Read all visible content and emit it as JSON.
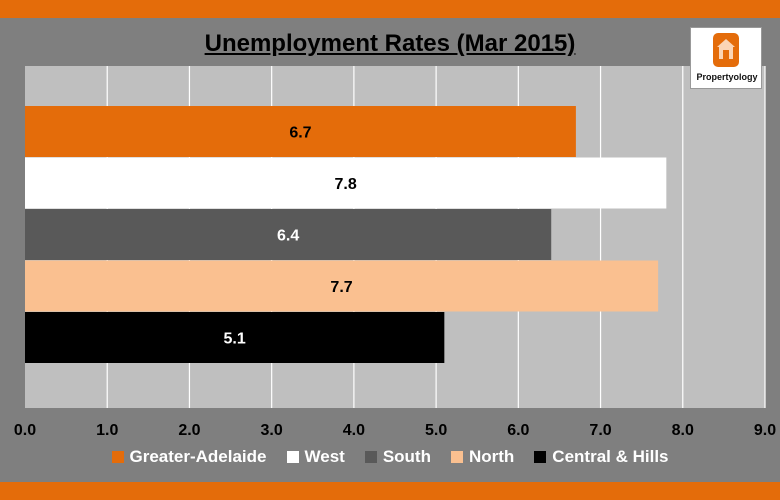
{
  "chart_data": {
    "type": "bar",
    "orientation": "horizontal",
    "title": "Unemployment Rates (Mar 2015)",
    "categories": [
      "Greater-Adelaide",
      "West",
      "South",
      "North",
      "Central & Hills"
    ],
    "values": [
      6.7,
      7.8,
      6.4,
      7.7,
      5.1
    ],
    "value_labels": [
      "6.7",
      "7.8",
      "6.4",
      "7.7",
      "5.1"
    ],
    "colors": [
      "#e46c0a",
      "#ffffff",
      "#595959",
      "#fac090",
      "#000000"
    ],
    "label_colors": [
      "#000000",
      "#000000",
      "#ffffff",
      "#000000",
      "#ffffff"
    ],
    "xlim": [
      0,
      9
    ],
    "x_ticks": [
      "0.0",
      "1.0",
      "2.0",
      "3.0",
      "4.0",
      "5.0",
      "6.0",
      "7.0",
      "8.0",
      "9.0"
    ],
    "grid": true,
    "legend_position": "bottom"
  },
  "logo": {
    "text": "Propertyology",
    "icon": "house-icon"
  },
  "colors": {
    "frame": "#7f7f7f",
    "plot_background": "#bfbfbf",
    "gridline": "#ffffff",
    "accent": "#e46c0a"
  }
}
